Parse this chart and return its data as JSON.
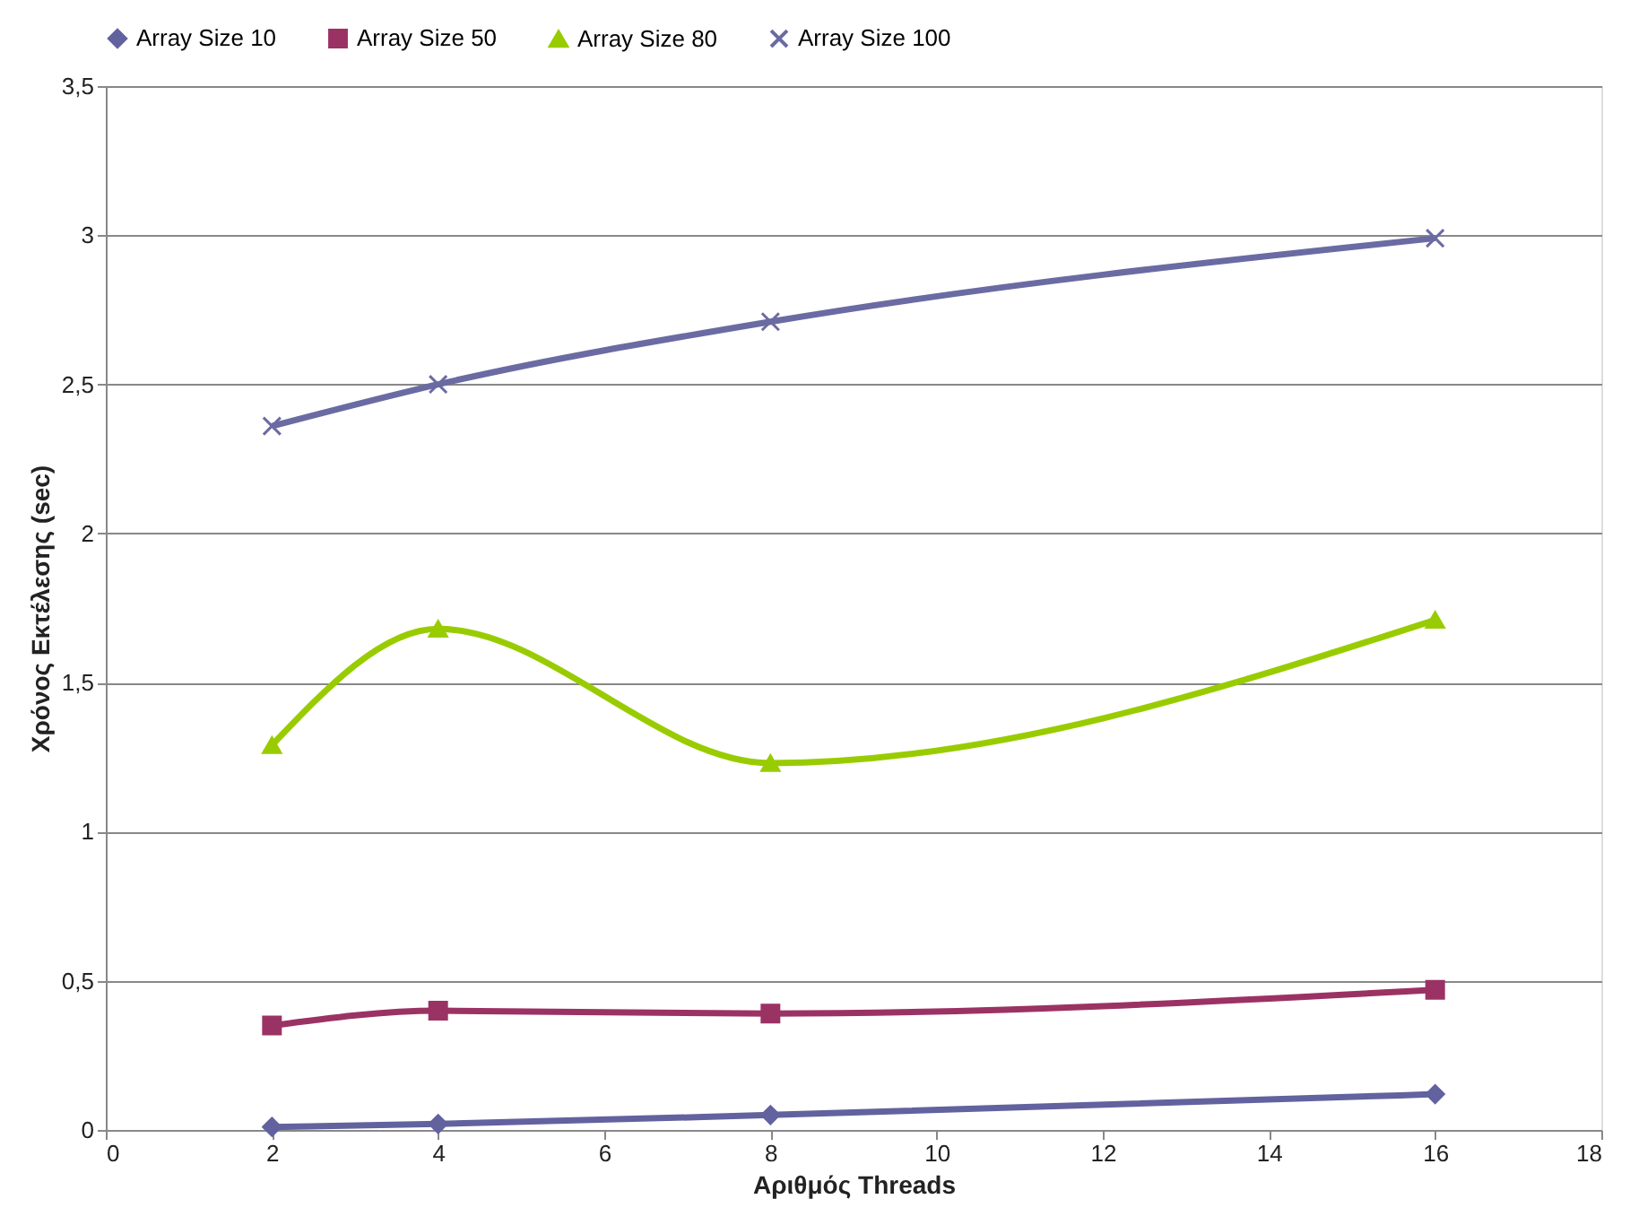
{
  "chart_data": {
    "type": "line",
    "xlabel": "Αριθμός Threads",
    "ylabel": "Χρόνος Εκτέλεσης (sec)",
    "x": [
      2,
      4,
      8,
      16
    ],
    "series": [
      {
        "name": "Array Size 10",
        "color": "#62629f",
        "marker": "diamond",
        "values": [
          0.01,
          0.02,
          0.05,
          0.12
        ]
      },
      {
        "name": "Array Size 50",
        "color": "#9b3264",
        "marker": "square",
        "values": [
          0.35,
          0.4,
          0.39,
          0.47
        ]
      },
      {
        "name": "Array Size 80",
        "color": "#99cc00",
        "marker": "triangle",
        "values": [
          1.29,
          1.68,
          1.23,
          1.71
        ]
      },
      {
        "name": "Array Size 100",
        "color": "#6b6ba3",
        "marker": "cross",
        "values": [
          2.36,
          2.5,
          2.71,
          2.99
        ]
      }
    ],
    "xlim": [
      0,
      18
    ],
    "xticks": [
      0,
      2,
      4,
      6,
      8,
      10,
      12,
      14,
      16,
      18
    ],
    "ylim": [
      0,
      3.5
    ],
    "yticks": [
      0,
      {
        "value": 0.5,
        "label": "0,5"
      },
      1,
      {
        "value": 1.5,
        "label": "1,5"
      },
      2,
      {
        "value": 2.5,
        "label": "2,5"
      },
      3,
      {
        "value": 3.5,
        "label": "3,5"
      }
    ],
    "grid": "y",
    "legend": "top",
    "line_style": "solid"
  }
}
